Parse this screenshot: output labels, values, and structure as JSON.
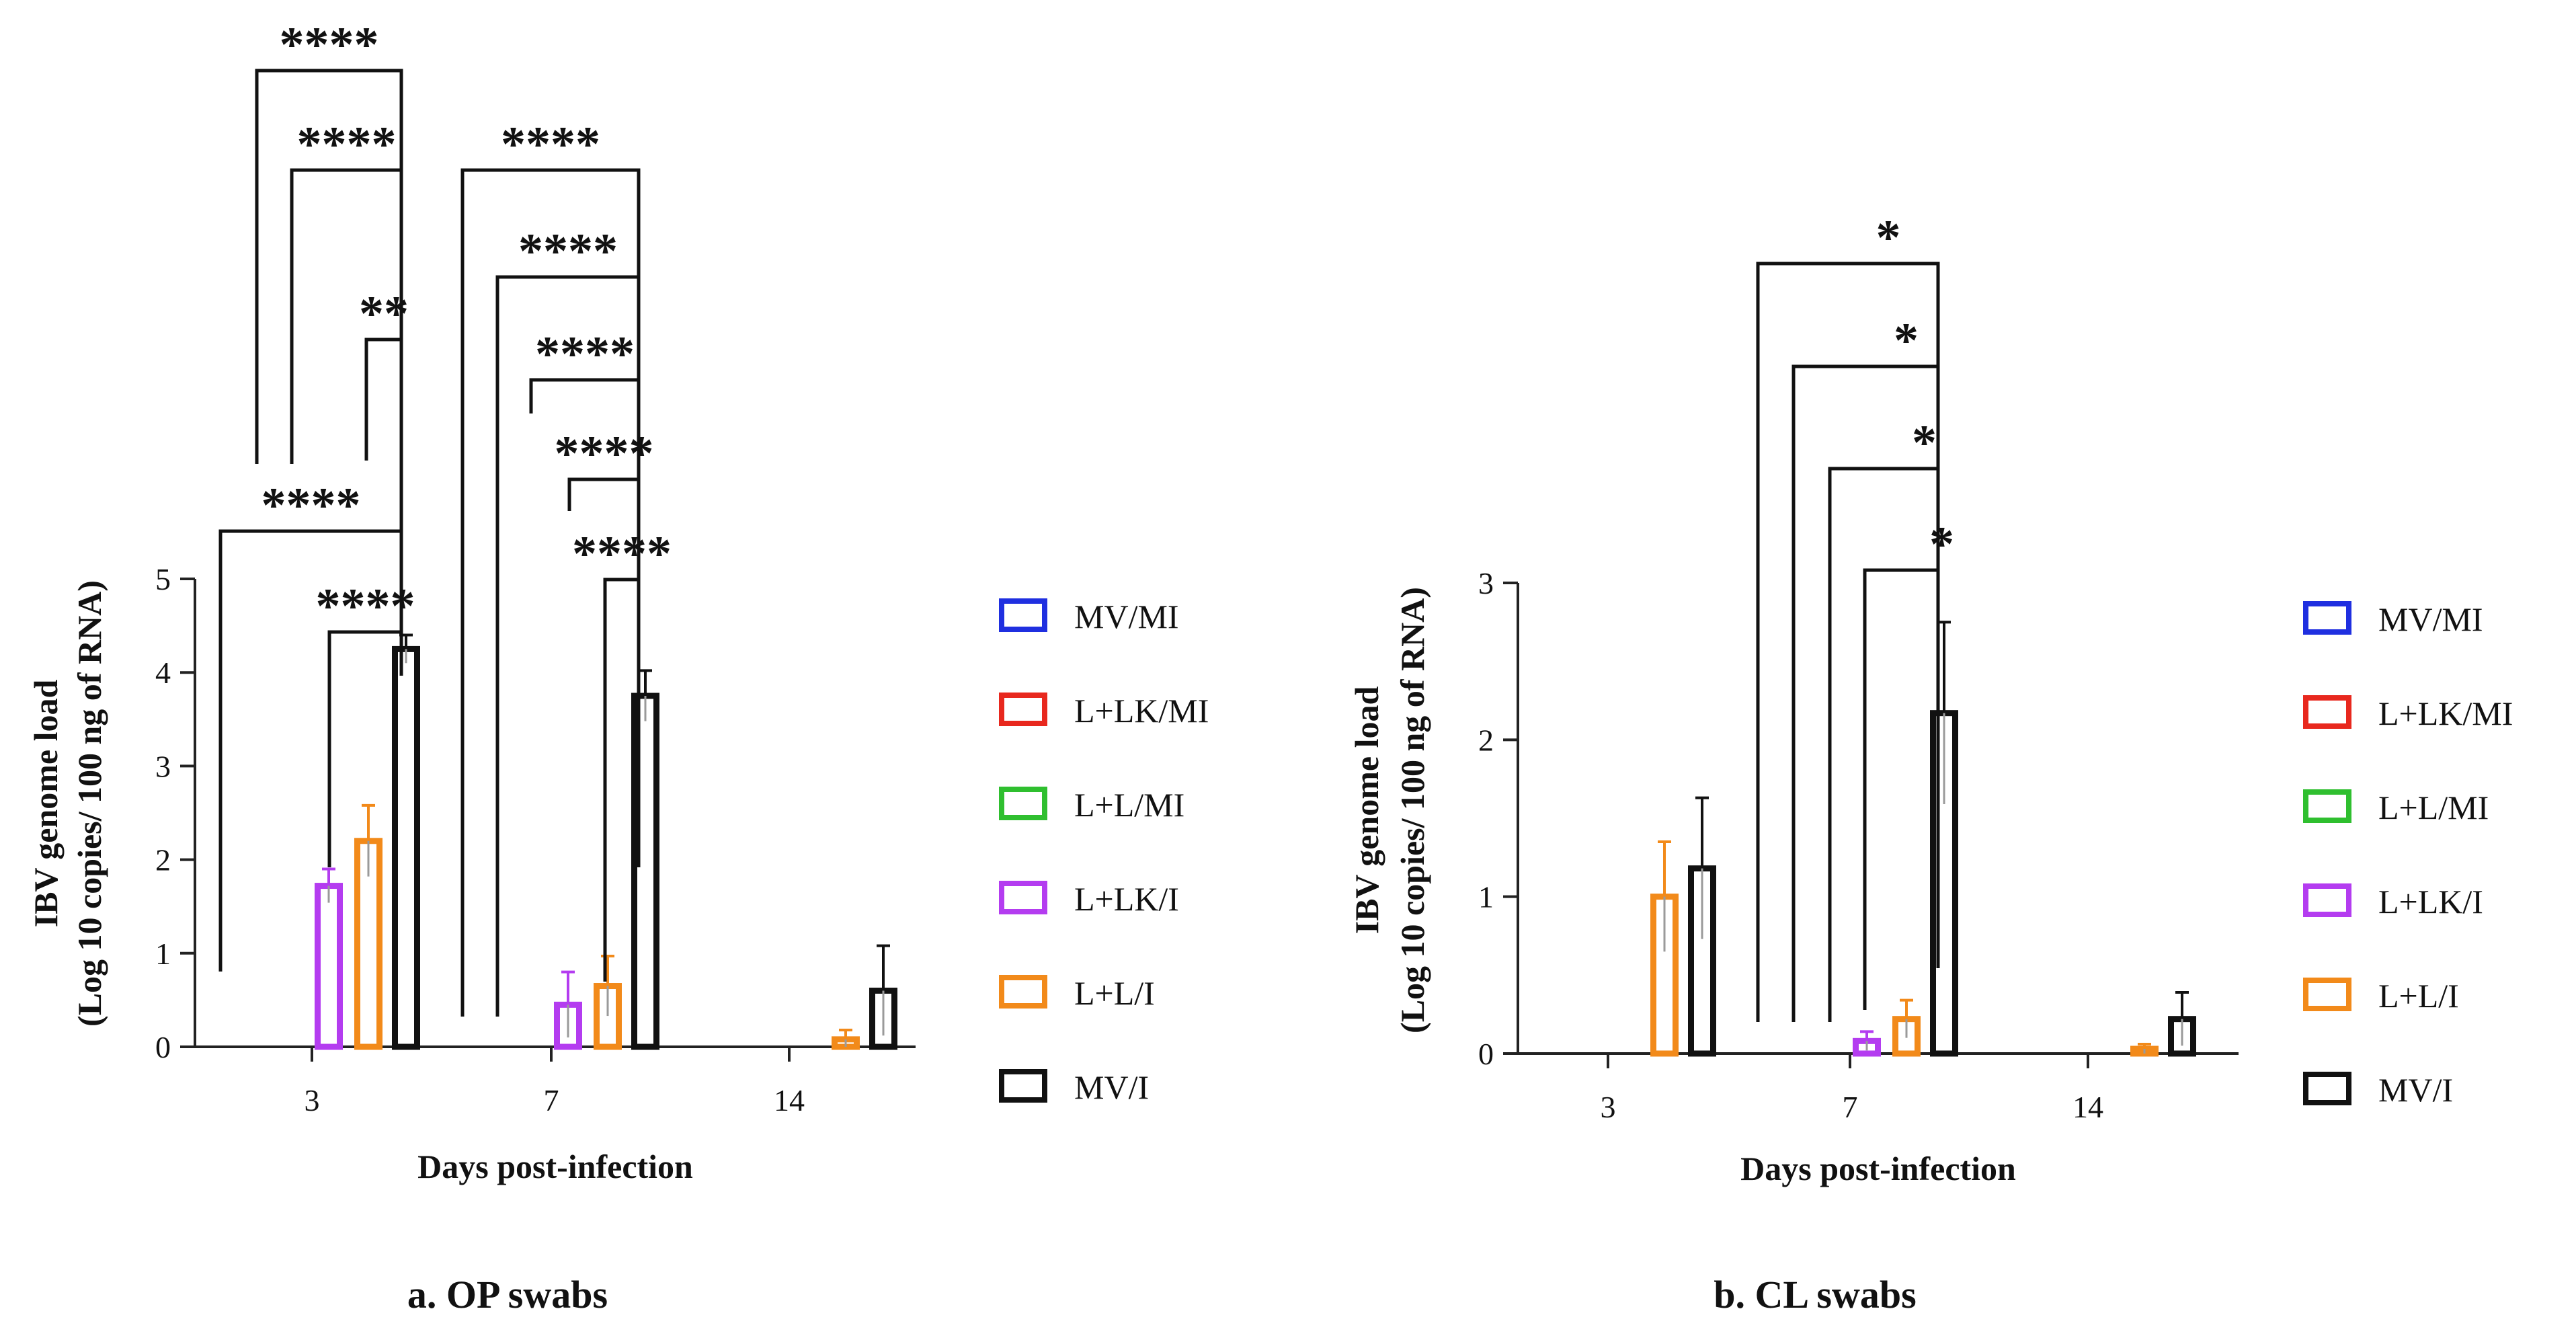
{
  "figure": {
    "caption_a": "a. OP swabs",
    "caption_b": "b. CL swabs"
  },
  "legend": {
    "items": [
      {
        "label": "MV/MI",
        "color": "#1f2fe0"
      },
      {
        "label": "L+LK/MI",
        "color": "#e8281e"
      },
      {
        "label": "L+L/MI",
        "color": "#2fbf2f"
      },
      {
        "label": "L+LK/I",
        "color": "#b43cf0"
      },
      {
        "label": "L+L/I",
        "color": "#f28a1a"
      },
      {
        "label": "MV/I",
        "color": "#111111"
      }
    ]
  },
  "chart_data": [
    {
      "type": "bar",
      "title": "a. OP swabs",
      "xlabel": "Days post-infection",
      "ylabel_line1": "IBV genome load",
      "ylabel_line2": "(Log 10 copies/ 100 ng of RNA)",
      "ylim": [
        0,
        5
      ],
      "yticks": [
        0,
        1,
        2,
        3,
        4,
        5
      ],
      "categories": [
        "3",
        "7",
        "14"
      ],
      "series": [
        {
          "name": "MV/MI",
          "color": "#1f2fe0",
          "values": [
            0,
            0,
            0
          ],
          "errors": [
            0,
            0,
            0
          ]
        },
        {
          "name": "L+LK/MI",
          "color": "#e8281e",
          "values": [
            0,
            0,
            0
          ],
          "errors": [
            0,
            0,
            0
          ]
        },
        {
          "name": "L+L/MI",
          "color": "#2fbf2f",
          "values": [
            0,
            0,
            0
          ],
          "errors": [
            0,
            0,
            0
          ]
        },
        {
          "name": "L+LK/I",
          "color": "#b43cf0",
          "values": [
            1.72,
            0.45,
            0
          ],
          "errors": [
            0.18,
            0.35,
            0
          ]
        },
        {
          "name": "L+L/I",
          "color": "#f28a1a",
          "values": [
            2.2,
            0.65,
            0.08
          ],
          "errors": [
            0.38,
            0.32,
            0.1
          ]
        },
        {
          "name": "MV/I",
          "color": "#111111",
          "values": [
            4.25,
            3.75,
            0.6
          ],
          "errors": [
            0.15,
            0.27,
            0.48
          ]
        }
      ],
      "significance": [
        {
          "group": 0,
          "from_series": 0,
          "to_series": 5,
          "label": "****"
        },
        {
          "group": 0,
          "from_series": 1,
          "to_series": 5,
          "label": "****"
        },
        {
          "group": 0,
          "from_series": 4,
          "to_series": 5,
          "label": "**"
        },
        {
          "group": 0,
          "from_series": 2,
          "to_series": 5,
          "label": "****"
        },
        {
          "group": 0,
          "from_series": 3,
          "to_series": 5,
          "label": "****"
        },
        {
          "group": 1,
          "from_series": 0,
          "to_series": 5,
          "label": "****"
        },
        {
          "group": 1,
          "from_series": 1,
          "to_series": 5,
          "label": "****"
        },
        {
          "group": 1,
          "from_series": 2,
          "to_series": 5,
          "label": "****"
        },
        {
          "group": 1,
          "from_series": 3,
          "to_series": 5,
          "label": "****"
        },
        {
          "group": 1,
          "from_series": 4,
          "to_series": 5,
          "label": "****"
        }
      ]
    },
    {
      "type": "bar",
      "title": "b. CL swabs",
      "xlabel": "Days post-infection",
      "ylabel_line1": "IBV genome load",
      "ylabel_line2": "(Log 10 copies/ 100 ng of RNA)",
      "ylim": [
        0,
        3
      ],
      "yticks": [
        0,
        1,
        2,
        3
      ],
      "categories": [
        "3",
        "7",
        "14"
      ],
      "series": [
        {
          "name": "MV/MI",
          "color": "#1f2fe0",
          "values": [
            0,
            0,
            0
          ],
          "errors": [
            0,
            0,
            0
          ]
        },
        {
          "name": "L+LK/MI",
          "color": "#e8281e",
          "values": [
            0,
            0,
            0
          ],
          "errors": [
            0,
            0,
            0
          ]
        },
        {
          "name": "L+L/MI",
          "color": "#2fbf2f",
          "values": [
            0,
            0,
            0
          ],
          "errors": [
            0,
            0,
            0
          ]
        },
        {
          "name": "L+LK/I",
          "color": "#b43cf0",
          "values": [
            0,
            0.08,
            0
          ],
          "errors": [
            0,
            0.06,
            0
          ]
        },
        {
          "name": "L+L/I",
          "color": "#f28a1a",
          "values": [
            1.0,
            0.22,
            0.03
          ],
          "errors": [
            0.35,
            0.12,
            0.03
          ]
        },
        {
          "name": "MV/I",
          "color": "#111111",
          "values": [
            1.18,
            2.17,
            0.22
          ],
          "errors": [
            0.45,
            0.58,
            0.17
          ]
        }
      ],
      "significance": [
        {
          "group": 1,
          "from_series": 0,
          "to_series": 5,
          "label": "*"
        },
        {
          "group": 1,
          "from_series": 1,
          "to_series": 5,
          "label": "*"
        },
        {
          "group": 1,
          "from_series": 2,
          "to_series": 5,
          "label": "*"
        },
        {
          "group": 1,
          "from_series": 3,
          "to_series": 5,
          "label": "*"
        }
      ]
    }
  ]
}
